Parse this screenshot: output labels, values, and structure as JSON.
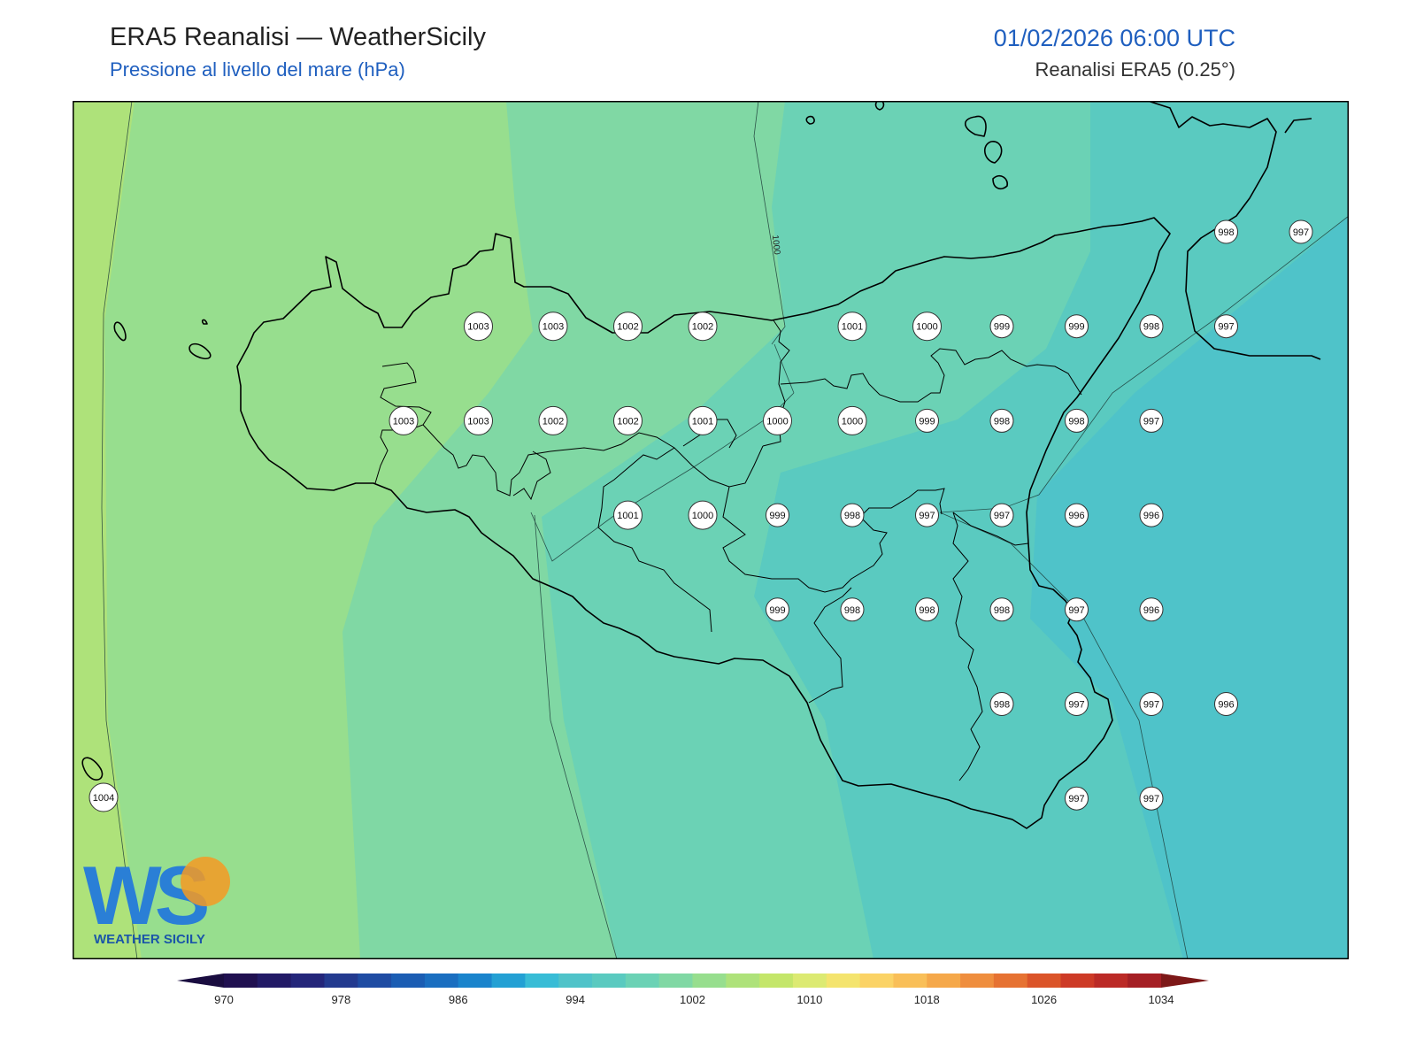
{
  "header": {
    "title": "ERA5 Reanalisi — WeatherSicily",
    "subtitle": "Pressione al livello del mare (hPa)",
    "datetime": "01/02/2026 06:00 UTC",
    "source": "Reanalisi ERA5 (0.25°)"
  },
  "map": {
    "contour_label": "1000",
    "band_colors": [
      "#aee27a",
      "#97de8e",
      "#80d8a4",
      "#6bd2b5",
      "#5acac0",
      "#4fc3c9"
    ],
    "coast_color": "#000000"
  },
  "stations": [
    {
      "value": "998",
      "col": 13,
      "row": 0
    },
    {
      "value": "997",
      "col": 14,
      "row": 0
    },
    {
      "value": "1003",
      "col": 3,
      "row": 1
    },
    {
      "value": "1003",
      "col": 4,
      "row": 1
    },
    {
      "value": "1002",
      "col": 5,
      "row": 1
    },
    {
      "value": "1002",
      "col": 6,
      "row": 1
    },
    {
      "value": "1001",
      "col": 8,
      "row": 1
    },
    {
      "value": "1000",
      "col": 9,
      "row": 1
    },
    {
      "value": "999",
      "col": 10,
      "row": 1
    },
    {
      "value": "999",
      "col": 11,
      "row": 1
    },
    {
      "value": "998",
      "col": 12,
      "row": 1
    },
    {
      "value": "997",
      "col": 13,
      "row": 1
    },
    {
      "value": "1003",
      "col": 2,
      "row": 2
    },
    {
      "value": "1003",
      "col": 3,
      "row": 2
    },
    {
      "value": "1002",
      "col": 4,
      "row": 2
    },
    {
      "value": "1002",
      "col": 5,
      "row": 2
    },
    {
      "value": "1001",
      "col": 6,
      "row": 2
    },
    {
      "value": "1000",
      "col": 7,
      "row": 2
    },
    {
      "value": "1000",
      "col": 8,
      "row": 2
    },
    {
      "value": "999",
      "col": 9,
      "row": 2
    },
    {
      "value": "998",
      "col": 10,
      "row": 2
    },
    {
      "value": "998",
      "col": 11,
      "row": 2
    },
    {
      "value": "997",
      "col": 12,
      "row": 2
    },
    {
      "value": "1001",
      "col": 5,
      "row": 3
    },
    {
      "value": "1000",
      "col": 6,
      "row": 3
    },
    {
      "value": "999",
      "col": 7,
      "row": 3
    },
    {
      "value": "998",
      "col": 8,
      "row": 3
    },
    {
      "value": "997",
      "col": 9,
      "row": 3
    },
    {
      "value": "997",
      "col": 10,
      "row": 3
    },
    {
      "value": "996",
      "col": 11,
      "row": 3
    },
    {
      "value": "996",
      "col": 12,
      "row": 3
    },
    {
      "value": "999",
      "col": 7,
      "row": 4
    },
    {
      "value": "998",
      "col": 8,
      "row": 4
    },
    {
      "value": "998",
      "col": 9,
      "row": 4
    },
    {
      "value": "998",
      "col": 10,
      "row": 4
    },
    {
      "value": "997",
      "col": 11,
      "row": 4
    },
    {
      "value": "996",
      "col": 12,
      "row": 4
    },
    {
      "value": "998",
      "col": 10,
      "row": 5
    },
    {
      "value": "997",
      "col": 11,
      "row": 5
    },
    {
      "value": "997",
      "col": 12,
      "row": 5
    },
    {
      "value": "996",
      "col": 13,
      "row": 5
    },
    {
      "value": "997",
      "col": 11,
      "row": 6
    },
    {
      "value": "997",
      "col": 12,
      "row": 6
    },
    {
      "value": "1004",
      "col": 0,
      "row": 6
    }
  ],
  "colorbar": {
    "ticks": [
      "970",
      "978",
      "986",
      "994",
      "1002",
      "1010",
      "1018",
      "1026",
      "1034"
    ],
    "colors": [
      "#201050",
      "#221a66",
      "#24267a",
      "#233a8f",
      "#1f4ca3",
      "#1b5db3",
      "#1a6ec0",
      "#1a84cc",
      "#23a0d4",
      "#38bcd6",
      "#4fc3c9",
      "#5acac0",
      "#6bd2b5",
      "#80d8a4",
      "#97de8e",
      "#aee27a",
      "#c4e66a",
      "#dcea72",
      "#f4e46e",
      "#fbd366",
      "#f9bf58",
      "#f5a84a",
      "#ef8e3e",
      "#e67232",
      "#db5429",
      "#cd3a26",
      "#bb2a26",
      "#a51f24"
    ],
    "extend_low_color": "#1a0d40",
    "extend_high_color": "#7d1818"
  },
  "logo": {
    "mark": "WS",
    "name": "WEATHER SICILY"
  }
}
